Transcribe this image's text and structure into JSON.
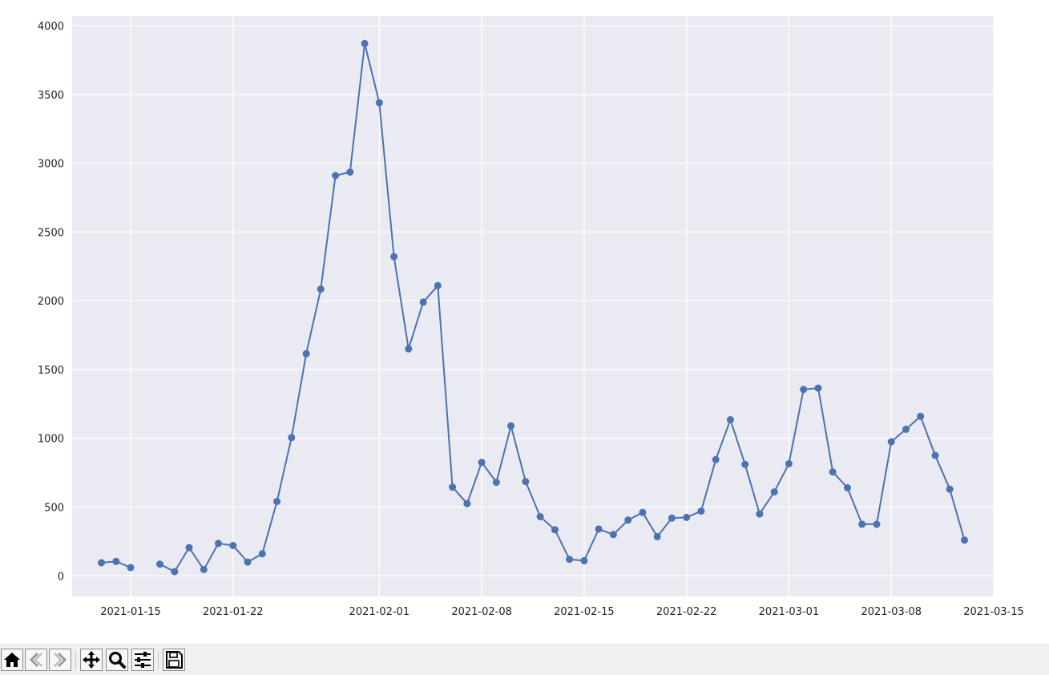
{
  "chart_data": {
    "type": "line",
    "title": "",
    "xlabel": "",
    "ylabel": "",
    "style": "seaborn-darkgrid",
    "grid": true,
    "marker": "circle",
    "line_color": "#4c72b0",
    "background_color": "#eaeaf2",
    "xlim": [
      "2021-01-11",
      "2021-03-15"
    ],
    "ylim": [
      -150,
      4070
    ],
    "x_ticks": [
      "2021-01-15",
      "2021-01-22",
      "2021-02-01",
      "2021-02-08",
      "2021-02-15",
      "2021-02-22",
      "2021-03-01",
      "2021-03-08",
      "2021-03-15"
    ],
    "y_ticks": [
      0,
      500,
      1000,
      1500,
      2000,
      2500,
      3000,
      3500,
      4000
    ],
    "series": [
      {
        "x": [
          "2021-01-13",
          "2021-01-14",
          "2021-01-15",
          "2021-01-17",
          "2021-01-18",
          "2021-01-19",
          "2021-01-20",
          "2021-01-21",
          "2021-01-22",
          "2021-01-23",
          "2021-01-24",
          "2021-01-25",
          "2021-01-26",
          "2021-01-27",
          "2021-01-28",
          "2021-01-29",
          "2021-01-30",
          "2021-01-31",
          "2021-02-01",
          "2021-02-02",
          "2021-02-03",
          "2021-02-04",
          "2021-02-05",
          "2021-02-06",
          "2021-02-07",
          "2021-02-08",
          "2021-02-09",
          "2021-02-10",
          "2021-02-11",
          "2021-02-12",
          "2021-02-13",
          "2021-02-14",
          "2021-02-15",
          "2021-02-16",
          "2021-02-17",
          "2021-02-18",
          "2021-02-19",
          "2021-02-20",
          "2021-02-21",
          "2021-02-22",
          "2021-02-23",
          "2021-02-24",
          "2021-02-25",
          "2021-02-26",
          "2021-02-27",
          "2021-02-28",
          "2021-03-01",
          "2021-03-02",
          "2021-03-03",
          "2021-03-04",
          "2021-03-05",
          "2021-03-06",
          "2021-03-07",
          "2021-03-08",
          "2021-03-09",
          "2021-03-10",
          "2021-03-11",
          "2021-03-12",
          "2021-03-13"
        ],
        "y": [
          95,
          105,
          60,
          85,
          30,
          205,
          45,
          235,
          220,
          100,
          160,
          540,
          1005,
          1615,
          2085,
          2910,
          2935,
          3870,
          3440,
          2320,
          1650,
          1990,
          2110,
          645,
          525,
          825,
          680,
          1090,
          685,
          430,
          335,
          120,
          110,
          340,
          300,
          405,
          460,
          285,
          420,
          425,
          470,
          845,
          1135,
          810,
          450,
          610,
          815,
          1355,
          1365,
          755,
          640,
          375,
          375,
          975,
          1065,
          1160,
          875,
          630,
          260
        ],
        "break_after_index": 2
      }
    ]
  },
  "toolbar": {
    "buttons": [
      {
        "name": "home-button",
        "icon": "home-icon"
      },
      {
        "name": "back-button",
        "icon": "arrow-left-icon"
      },
      {
        "name": "forward-button",
        "icon": "arrow-right-icon"
      },
      {
        "name": "pan-button",
        "icon": "move-icon"
      },
      {
        "name": "zoom-button",
        "icon": "magnifier-icon"
      },
      {
        "name": "configure-subplots-button",
        "icon": "sliders-icon"
      },
      {
        "name": "save-button",
        "icon": "floppy-disk-icon"
      }
    ]
  }
}
